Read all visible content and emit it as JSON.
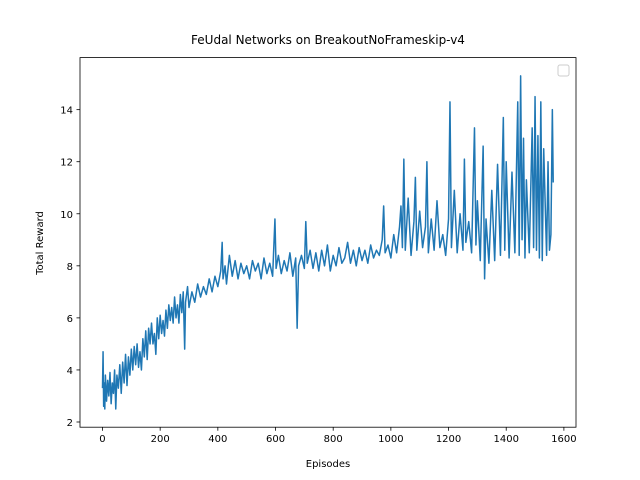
{
  "chart_data": {
    "type": "line",
    "title": "FeUdal Networks on BreakoutNoFrameskip-v4",
    "x_label": "Episodes",
    "y_label": "Total Reward",
    "color": "#1f77b4",
    "legend": "upper right",
    "xlim": [
      -78,
      1642
    ],
    "ylim": [
      1.8,
      16.0
    ],
    "xticks": [
      0,
      200,
      400,
      600,
      800,
      1000,
      1200,
      1400,
      1600
    ],
    "yticks": [
      2,
      4,
      6,
      8,
      10,
      12,
      14
    ],
    "x": [
      0,
      2,
      4,
      6,
      8,
      10,
      14,
      18,
      22,
      26,
      30,
      34,
      38,
      42,
      46,
      50,
      55,
      60,
      65,
      70,
      75,
      80,
      85,
      90,
      95,
      100,
      105,
      110,
      115,
      120,
      125,
      130,
      135,
      140,
      145,
      150,
      155,
      160,
      165,
      170,
      175,
      180,
      185,
      190,
      195,
      200,
      205,
      210,
      215,
      220,
      225,
      230,
      235,
      240,
      245,
      250,
      255,
      260,
      265,
      270,
      275,
      280,
      285,
      288,
      295,
      300,
      310,
      320,
      330,
      340,
      350,
      360,
      370,
      380,
      390,
      400,
      410,
      415,
      418,
      425,
      430,
      440,
      450,
      460,
      470,
      480,
      490,
      500,
      510,
      520,
      530,
      540,
      550,
      560,
      570,
      580,
      590,
      598,
      602,
      610,
      620,
      630,
      640,
      650,
      660,
      670,
      675,
      680,
      690,
      700,
      705,
      710,
      720,
      730,
      740,
      750,
      760,
      770,
      780,
      790,
      800,
      810,
      820,
      830,
      840,
      850,
      860,
      870,
      880,
      890,
      900,
      910,
      920,
      930,
      940,
      950,
      960,
      970,
      975,
      980,
      990,
      1000,
      1010,
      1020,
      1030,
      1035,
      1040,
      1045,
      1050,
      1060,
      1070,
      1080,
      1085,
      1090,
      1100,
      1110,
      1120,
      1125,
      1130,
      1140,
      1150,
      1160,
      1170,
      1180,
      1190,
      1200,
      1205,
      1210,
      1220,
      1230,
      1240,
      1250,
      1255,
      1260,
      1270,
      1280,
      1290,
      1295,
      1300,
      1310,
      1320,
      1325,
      1330,
      1340,
      1350,
      1360,
      1370,
      1380,
      1390,
      1395,
      1400,
      1410,
      1420,
      1430,
      1440,
      1445,
      1450,
      1455,
      1460,
      1465,
      1470,
      1480,
      1490,
      1495,
      1500,
      1505,
      1510,
      1515,
      1520,
      1525,
      1530,
      1540,
      1545,
      1550,
      1555,
      1560,
      1563
    ],
    "values": [
      3.3,
      4.7,
      2.6,
      3.5,
      2.5,
      3.8,
      2.8,
      3.6,
      3.0,
      3.9,
      2.7,
      3.5,
      3.1,
      4.0,
      2.5,
      3.8,
      3.3,
      4.2,
      3.1,
      4.3,
      3.5,
      4.6,
      3.4,
      4.5,
      3.8,
      4.8,
      4.0,
      4.9,
      4.2,
      5.0,
      4.1,
      4.7,
      4.0,
      5.2,
      4.5,
      5.5,
      4.4,
      5.6,
      5.0,
      5.8,
      5.0,
      5.4,
      4.6,
      6.0,
      5.2,
      6.1,
      5.4,
      5.9,
      5.3,
      6.3,
      5.6,
      6.5,
      5.9,
      6.4,
      5.8,
      6.8,
      6.0,
      6.5,
      5.8,
      6.9,
      6.2,
      7.0,
      4.8,
      6.6,
      7.2,
      6.4,
      7.0,
      6.6,
      7.3,
      6.8,
      7.2,
      6.9,
      7.5,
      7.0,
      7.6,
      7.2,
      7.8,
      8.9,
      7.5,
      8.0,
      7.3,
      8.4,
      7.6,
      8.2,
      7.5,
      8.1,
      7.7,
      8.0,
      7.5,
      8.2,
      7.8,
      8.1,
      7.5,
      8.3,
      7.7,
      8.1,
      7.6,
      9.8,
      7.9,
      8.4,
      7.7,
      8.2,
      7.8,
      8.5,
      7.6,
      8.3,
      5.6,
      8.0,
      8.4,
      7.9,
      9.7,
      8.1,
      8.6,
      7.9,
      8.5,
      7.8,
      8.6,
      8.0,
      8.8,
      7.8,
      8.4,
      8.0,
      8.7,
      8.1,
      8.3,
      8.9,
      8.1,
      8.6,
      8.0,
      8.7,
      8.2,
      8.6,
      8.1,
      8.8,
      8.3,
      8.6,
      8.4,
      9.0,
      10.3,
      8.5,
      8.8,
      8.3,
      9.2,
      8.5,
      9.5,
      10.3,
      8.7,
      12.1,
      8.6,
      10.6,
      8.4,
      9.7,
      11.4,
      8.6,
      10.1,
      8.7,
      9.5,
      12.0,
      8.5,
      9.8,
      8.6,
      10.5,
      8.7,
      9.2,
      8.4,
      9.8,
      14.3,
      8.7,
      10.9,
      8.5,
      10.0,
      8.6,
      12.1,
      8.9,
      9.7,
      8.5,
      13.3,
      8.8,
      10.5,
      8.2,
      12.6,
      7.5,
      9.8,
      8.1,
      10.9,
      8.2,
      11.9,
      8.4,
      13.7,
      8.6,
      12.0,
      8.3,
      11.6,
      8.5,
      14.3,
      8.4,
      15.3,
      9.0,
      12.9,
      8.3,
      11.3,
      8.5,
      13.3,
      8.7,
      14.5,
      8.6,
      13.0,
      8.3,
      14.3,
      8.2,
      12.5,
      8.4,
      12.0,
      8.6,
      9.2,
      14.0,
      11.2
    ]
  }
}
